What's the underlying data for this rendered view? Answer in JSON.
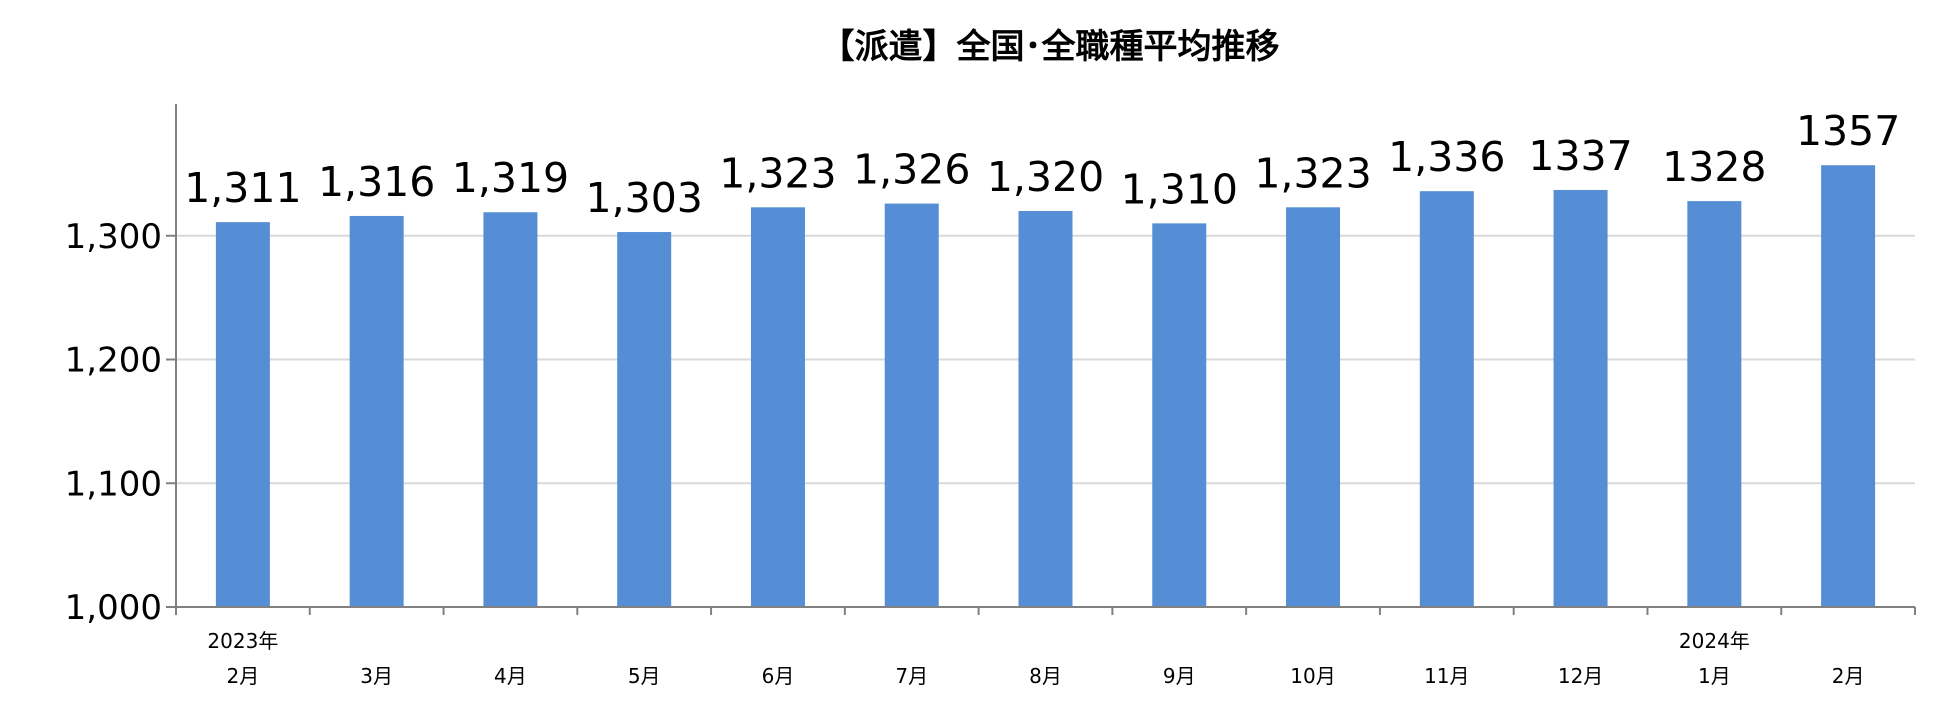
{
  "chart_data": {
    "type": "bar",
    "title": "【派遣】全国･全職種平均推移",
    "categories": [
      "2月",
      "3月",
      "4月",
      "5月",
      "6月",
      "7月",
      "8月",
      "9月",
      "10月",
      "11月",
      "12月",
      "1月",
      "2月"
    ],
    "year_labels": [
      {
        "index": 0,
        "text": "2023年"
      },
      {
        "index": 11,
        "text": "2024年"
      }
    ],
    "series": [
      {
        "values": [
          1311,
          1316,
          1319,
          1303,
          1323,
          1326,
          1320,
          1310,
          1323,
          1336,
          1337,
          1328,
          1357
        ],
        "data_labels": [
          "1,311",
          "1,316",
          "1,319",
          "1,303",
          "1,323",
          "1,326",
          "1,320",
          "1,310",
          "1,323",
          "1,336",
          "1337",
          "1328",
          "1357"
        ],
        "color": "#558ED5"
      }
    ],
    "ylim": [
      1000,
      1400
    ],
    "yticks": [
      1000,
      1100,
      1200,
      1300
    ],
    "ytick_labels": [
      "1,000",
      "1,100",
      "1,200",
      "1,300"
    ],
    "xlabel": "",
    "ylabel": "",
    "grid": true,
    "gridline_color": "#D9D9D9",
    "axis_color": "#808080",
    "legend": "none"
  }
}
